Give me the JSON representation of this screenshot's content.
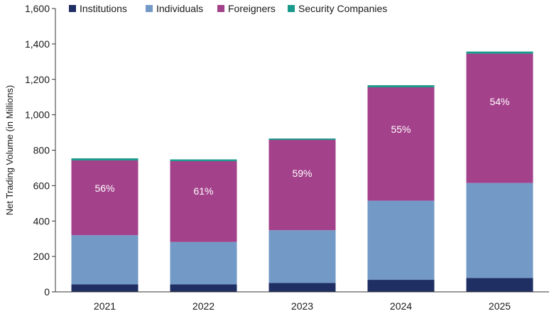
{
  "chart_data": {
    "type": "bar",
    "stacked": true,
    "categories": [
      "2021",
      "2022",
      "2023",
      "2024",
      "2025"
    ],
    "ylabel": "Net Trading Volume (in Millions)",
    "ylim": [
      0,
      1600
    ],
    "yticks": [
      0,
      200,
      400,
      600,
      800,
      1000,
      1200,
      1400,
      1600
    ],
    "ytick_labels": [
      "0",
      "200",
      "400",
      "600",
      "800",
      "1,000",
      "1,200",
      "1,400",
      "1,600"
    ],
    "legend_position": "top",
    "grid": false,
    "series": [
      {
        "name": "Institutions",
        "color": "#1f2f63",
        "values": [
          42,
          42,
          50,
          68,
          78
        ]
      },
      {
        "name": "Individuals",
        "color": "#7399c6",
        "values": [
          278,
          240,
          298,
          447,
          537
        ]
      },
      {
        "name": "Foreigners",
        "color": "#a4418b",
        "values": [
          422,
          456,
          510,
          640,
          730
        ]
      },
      {
        "name": "Security Companies",
        "color": "#1a9a8c",
        "values": [
          12,
          10,
          8,
          12,
          12
        ]
      }
    ],
    "annotations": [
      "56%",
      "61%",
      "59%",
      "55%",
      "54%"
    ]
  }
}
